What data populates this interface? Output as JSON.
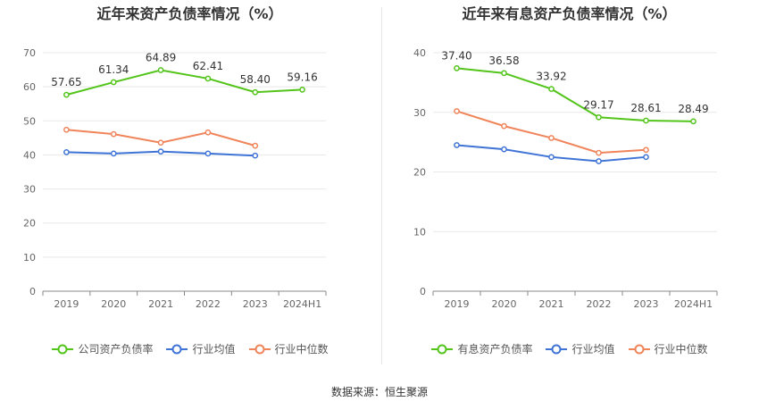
{
  "chart_data": [
    {
      "type": "line",
      "title": "近年来资产负债率情况（%）",
      "categories": [
        "2019",
        "2020",
        "2021",
        "2022",
        "2023",
        "2024H1"
      ],
      "ylim": [
        0,
        70
      ],
      "yticks": [
        0,
        10,
        20,
        30,
        40,
        50,
        60,
        70
      ],
      "grid": true,
      "legend_position": "bottom",
      "series": [
        {
          "name": "公司资产负债率",
          "color": "#52c41a",
          "values": [
            57.65,
            61.34,
            64.89,
            62.41,
            58.4,
            59.16
          ],
          "labels": [
            "57.65",
            "61.34",
            "64.89",
            "62.41",
            "58.40",
            "59.16"
          ]
        },
        {
          "name": "行业均值",
          "color": "#3f74d6",
          "values": [
            40.8,
            40.4,
            41.0,
            40.4,
            39.8,
            null
          ]
        },
        {
          "name": "行业中位数",
          "color": "#f0845a",
          "values": [
            47.4,
            46.1,
            43.6,
            46.6,
            42.7,
            null
          ]
        }
      ]
    },
    {
      "type": "line",
      "title": "近年来有息资产负债率情况（%）",
      "categories": [
        "2019",
        "2020",
        "2021",
        "2022",
        "2023",
        "2024H1"
      ],
      "ylim": [
        0,
        40
      ],
      "yticks": [
        0,
        10,
        20,
        30,
        40
      ],
      "grid": true,
      "legend_position": "bottom",
      "series": [
        {
          "name": "有息资产负债率",
          "color": "#52c41a",
          "values": [
            37.4,
            36.58,
            33.92,
            29.17,
            28.61,
            28.49
          ],
          "labels": [
            "37.40",
            "36.58",
            "33.92",
            "29.17",
            "28.61",
            "28.49"
          ]
        },
        {
          "name": "行业均值",
          "color": "#3f74d6",
          "values": [
            24.5,
            23.8,
            22.5,
            21.8,
            22.5,
            null
          ]
        },
        {
          "name": "行业中位数",
          "color": "#f0845a",
          "values": [
            30.2,
            27.7,
            25.7,
            23.2,
            23.7,
            null
          ]
        }
      ]
    }
  ],
  "footer": {
    "source_text": "数据来源：恒生聚源"
  }
}
